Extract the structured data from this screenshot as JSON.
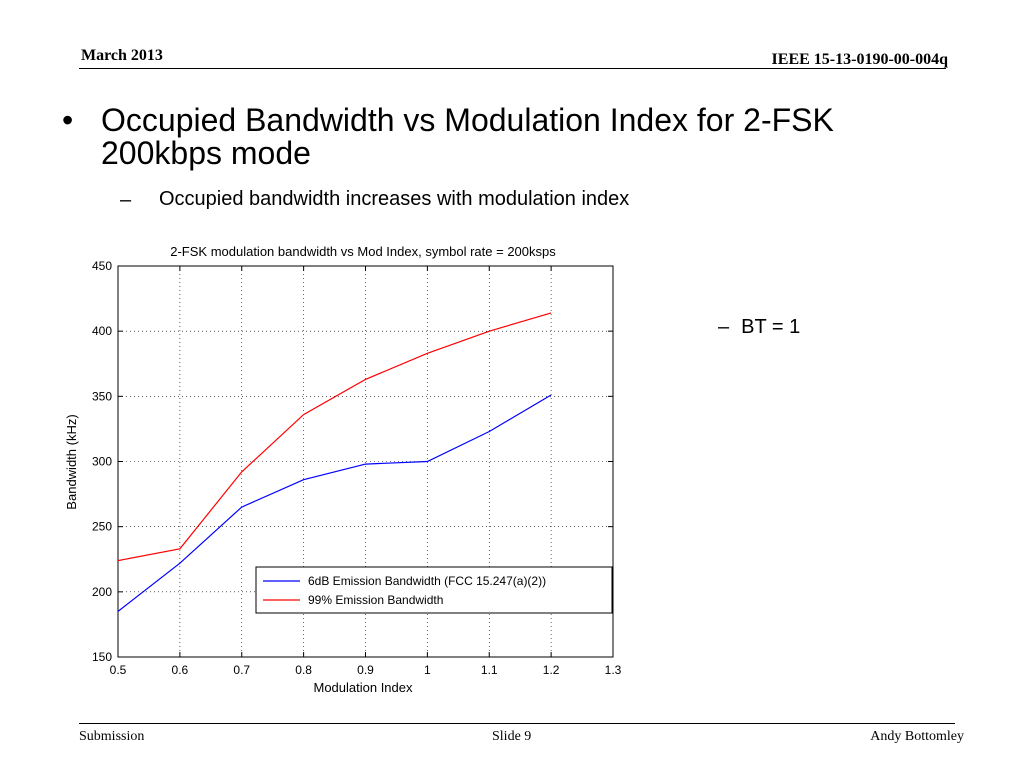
{
  "header": {
    "date": "March 2013",
    "doc_id": "IEEE 15-13-0190-00-004q"
  },
  "content": {
    "bullet": "•",
    "title": "Occupied Bandwidth vs Modulation Index for 2-FSK 200kbps mode",
    "sub_dash": "–",
    "sub_point": "Occupied bandwidth increases with modulation index",
    "side_dash": "–",
    "side_note": "BT = 1"
  },
  "footer": {
    "left": "Submission",
    "center": "Slide 9",
    "right": "Andy Bottomley"
  },
  "colors": {
    "series_blue": "#0000ff",
    "series_red": "#ff0000",
    "grid": "#000000"
  },
  "chart_data": {
    "type": "line",
    "title": "2-FSK modulation bandwidth vs Mod Index, symbol rate = 200ksps",
    "xlabel": "Modulation Index",
    "ylabel": "Bandwidth (kHz)",
    "xlim": [
      0.5,
      1.3
    ],
    "ylim": [
      150,
      450
    ],
    "xticks": [
      "0.5",
      "0.6",
      "0.7",
      "0.8",
      "0.9",
      "1",
      "1.1",
      "1.2",
      "1.3"
    ],
    "yticks": [
      "150",
      "200",
      "250",
      "300",
      "350",
      "400",
      "450"
    ],
    "grid": true,
    "legend_position": "bottom-center",
    "x": [
      0.5,
      0.6,
      0.7,
      0.8,
      0.9,
      1.0,
      1.1,
      1.2
    ],
    "series": [
      {
        "name": "6dB Emission Bandwidth (FCC 15.247(a)(2))",
        "color": "#0000ff",
        "values": [
          185,
          222,
          265,
          286,
          298,
          300,
          323,
          351
        ]
      },
      {
        "name": "99% Emission Bandwidth",
        "color": "#ff0000",
        "values": [
          224,
          233,
          292,
          336,
          363,
          383,
          400,
          414
        ]
      }
    ]
  }
}
